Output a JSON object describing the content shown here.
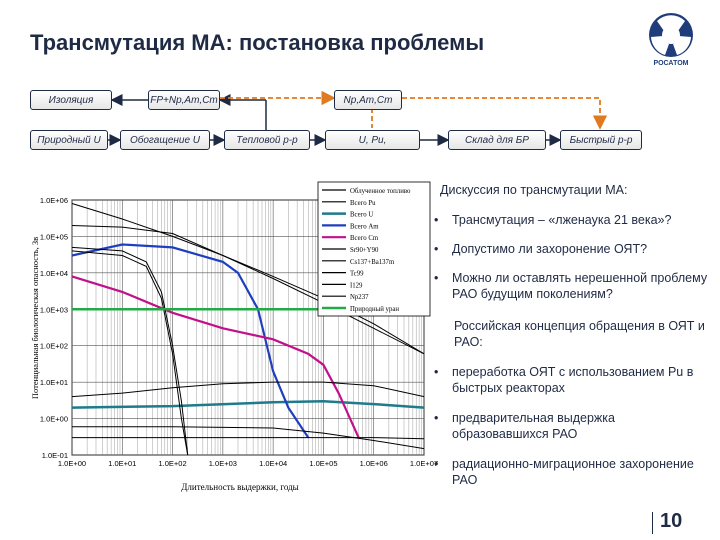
{
  "title": "Трансмутация МА: постановка проблемы",
  "logo": {
    "text": "РОСАТОМ",
    "icon": "rosatom-atom-logo"
  },
  "flow": {
    "top_boxes": [
      "Изоляция",
      "FP+Np,Am,Cm",
      "Np,Am,Cm"
    ],
    "bottom_boxes": [
      "Природный U",
      "Обогащение U",
      "Тепловой р-р",
      "U, Pu,",
      "Склад для БР",
      "Быстрый р-р"
    ]
  },
  "chart_data": {
    "type": "line",
    "xscale": "log",
    "yscale": "log",
    "xlabel": "Длительность выдержки, годы",
    "ylabel": "Потенциальная биологическая опасность, Зв",
    "xlim": [
      1,
      10000000
    ],
    "ylim": [
      0.1,
      1000000
    ],
    "xticks": [
      "1.0E+00",
      "1.0E+01",
      "1.0E+02",
      "1.0E+03",
      "1.0E+04",
      "1.0E+05",
      "1.0E+06",
      "1.0E+07"
    ],
    "yticks": [
      "1.0E-01",
      "1.0E+00",
      "1.0E+01",
      "1.0E+02",
      "1.0E+03",
      "1.0E+04",
      "1.0E+05",
      "1.0E+06"
    ],
    "grid": true,
    "legend_position": "top-right",
    "series": [
      {
        "name": "Облученное топливо",
        "color": "#000000",
        "x": [
          1,
          10,
          100,
          1000,
          10000,
          100000,
          1000000,
          10000000
        ],
        "y": [
          800000,
          300000,
          100000,
          30000,
          8000,
          2000,
          400,
          60
        ]
      },
      {
        "name": "Всего Pu",
        "color": "#000000",
        "x": [
          1,
          10,
          100,
          1000,
          10000,
          100000,
          1000000,
          10000000
        ],
        "y": [
          200000,
          180000,
          120000,
          30000,
          7000,
          1500,
          300,
          60
        ]
      },
      {
        "name": "Всего U",
        "color": "#1f7a8a",
        "x": [
          1,
          100,
          10000,
          100000,
          1000000,
          10000000
        ],
        "y": [
          2,
          2.2,
          2.8,
          3,
          2.5,
          2
        ]
      },
      {
        "name": "Всего Am",
        "color": "#1f3fbf",
        "x": [
          1,
          10,
          100,
          1000,
          2000,
          5000,
          10000,
          20000,
          50000
        ],
        "y": [
          30000,
          60000,
          50000,
          20000,
          10000,
          1000,
          20,
          2,
          0.3
        ]
      },
      {
        "name": "Всего Cm",
        "color": "#c0108a",
        "x": [
          1,
          10,
          100,
          1000,
          10000,
          50000,
          100000,
          200000,
          500000
        ],
        "y": [
          8000,
          3000,
          800,
          300,
          150,
          60,
          30,
          5,
          0.3
        ]
      },
      {
        "name": "Sr90+Y90",
        "color": "#000000",
        "x": [
          1,
          10,
          30,
          60,
          100,
          150,
          200
        ],
        "y": [
          50000,
          40000,
          20000,
          3000,
          100,
          3,
          0.1
        ]
      },
      {
        "name": "Cs137+Ba137m",
        "color": "#000000",
        "x": [
          1,
          10,
          30,
          60,
          100,
          150,
          200
        ],
        "y": [
          40000,
          30000,
          15000,
          2000,
          60,
          1,
          0.1
        ]
      },
      {
        "name": "Tc99",
        "color": "#000000",
        "x": [
          1,
          100,
          10000,
          100000,
          1000000,
          10000000
        ],
        "y": [
          0.6,
          0.6,
          0.55,
          0.4,
          0.25,
          0.15
        ]
      },
      {
        "name": "I129",
        "color": "#000000",
        "x": [
          1,
          100,
          10000,
          1000000,
          10000000
        ],
        "y": [
          0.3,
          0.3,
          0.3,
          0.3,
          0.28
        ]
      },
      {
        "name": "Np237",
        "color": "#000000",
        "x": [
          1,
          10,
          100,
          1000,
          10000,
          100000,
          1000000,
          10000000
        ],
        "y": [
          4,
          5,
          7,
          9,
          10,
          10,
          8,
          4
        ]
      },
      {
        "name": "Природный уран",
        "color": "#22aa44",
        "x": [
          1,
          10000000
        ],
        "y": [
          1000,
          1000
        ]
      }
    ]
  },
  "right": {
    "heading1": "Дискуссия по трансмутации МА:",
    "bullets1": [
      "Трансмутация – «лженаука 21 века»?",
      "Допустимо ли захоронение ОЯТ?",
      "Можно ли оставлять нерешенной проблему РАО будущим поколениям?"
    ],
    "heading2": "Российская концепция обращения в ОЯТ и РАО:",
    "bullets2": [
      "переработка ОЯТ с использованием Pu в быстрых реакторах",
      "предварительная выдержка образовавшихся РАО",
      "радиационно-миграционное захоронение РАО"
    ]
  },
  "page_number": "10"
}
